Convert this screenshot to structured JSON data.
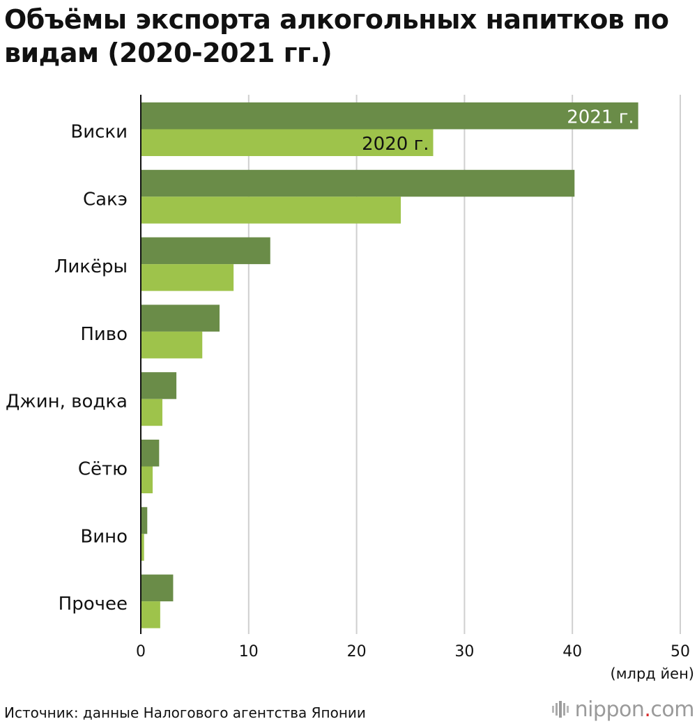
{
  "header": {
    "title": "Объёмы экспорта алкогольных напитков по видам (2020-2021 гг.)"
  },
  "chart_data": {
    "type": "bar",
    "orientation": "horizontal",
    "title": "Объёмы экспорта алкогольных напитков по видам (2020-2021 гг.)",
    "categories": [
      "Виски",
      "Сакэ",
      "Ликёры",
      "Пиво",
      "Джин, водка",
      "Сётю",
      "Вино",
      "Прочее"
    ],
    "series": [
      {
        "name": "2021 г.",
        "color": "#6a8c48",
        "values": [
          46.1,
          40.2,
          12.0,
          7.3,
          3.3,
          1.7,
          0.6,
          3.0
        ]
      },
      {
        "name": "2020 г.",
        "color": "#9ec34b",
        "values": [
          27.1,
          24.1,
          8.6,
          5.7,
          2.0,
          1.1,
          0.3,
          1.8
        ]
      }
    ],
    "x_ticks": [
      "0",
      "10",
      "20",
      "30",
      "40",
      "50"
    ],
    "xlim": [
      0,
      50
    ],
    "xlabel": "(млрд йен)",
    "grid": true,
    "legend": "inline labels on the first category's bars"
  },
  "footer": {
    "source": "Источник: данные Налогового агентства Японии",
    "logo_name": "nippon",
    "logo_dot": ".",
    "logo_tld": "com"
  },
  "colors": {
    "series_2021": "#6a8c48",
    "series_2020": "#9ec34b",
    "grid": "#cfcfcf",
    "axis": "#111111",
    "logo_gray": "#9a9a9a",
    "logo_accent": "#d92b2b"
  }
}
